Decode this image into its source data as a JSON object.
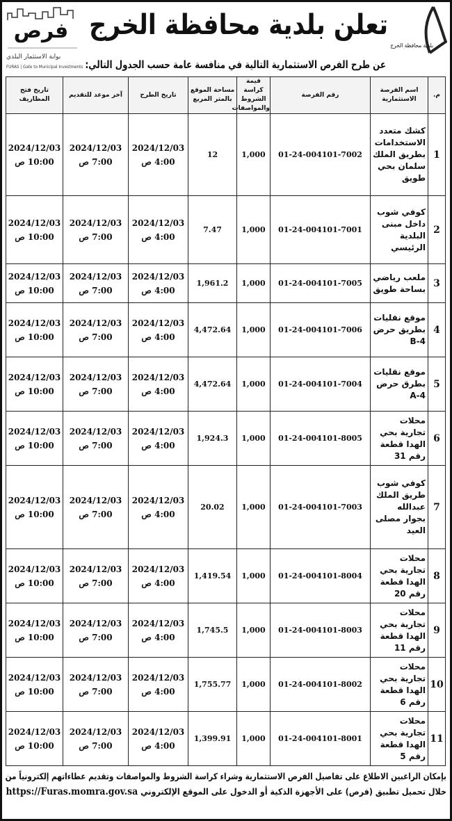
{
  "header": {
    "title": "تعلن بلدية محافظة الخرج",
    "subtitle": "عن طرح الفرص الاستثمارية التالية في منافسة عامة حسب الجدول التالي:",
    "municipality_logo_text": "بلدية محافظة الخرج",
    "furas_logo": "فرص",
    "furas_sub": "بوابة الاستثمار البلدي",
    "furas_en": "FURAS | Gate to Municipal Investments"
  },
  "table": {
    "headers": [
      "م.",
      "اسم الفرصة الاستثمارية",
      "رقم الفرصة",
      "قيمة كراسة الشروط والمواصفات",
      "مساحة الموقع بالمتر المربع",
      "تاريخ الطرح",
      "آخر موعد للتقديم",
      "تاريخ فتح المظاريف"
    ],
    "rows": [
      {
        "n": "1",
        "name": "كشك متعدد الاستخدامات بطريق الملك سلمان بحي طويق",
        "id": "01-24-004101-7002",
        "cost": "1,000",
        "area": "12",
        "post_date": "2024/12/03",
        "post_time": "4:00 ص",
        "deadline_date": "2024/12/03",
        "deadline_time": "7:00 ص",
        "open_date": "2024/12/03",
        "open_time": "10:00 ص"
      },
      {
        "n": "2",
        "name": "كوفي شوب داخل مبنى البلدية الرئيسي",
        "id": "01-24-004101-7001",
        "cost": "1,000",
        "area": "7.47",
        "post_date": "2024/12/03",
        "post_time": "4:00 ص",
        "deadline_date": "2024/12/03",
        "deadline_time": "7:00 ص",
        "open_date": "2024/12/03",
        "open_time": "10:00 ص"
      },
      {
        "n": "3",
        "name": "ملعب رياضي بساحة طويق",
        "id": "01-24-004101-7005",
        "cost": "1,000",
        "area": "1,961.2",
        "post_date": "2024/12/03",
        "post_time": "4:00 ص",
        "deadline_date": "2024/12/03",
        "deadline_time": "7:00 ص",
        "open_date": "2024/12/03",
        "open_time": "10:00 ص"
      },
      {
        "n": "4",
        "name": "موقع نقليات بطريق حرض B-4",
        "id": "01-24-004101-7006",
        "cost": "1,000",
        "area": "4,472.64",
        "post_date": "2024/12/03",
        "post_time": "4:00 ص",
        "deadline_date": "2024/12/03",
        "deadline_time": "7:00 ص",
        "open_date": "2024/12/03",
        "open_time": "10:00 ص"
      },
      {
        "n": "5",
        "name": "موقع نقليات بطرق حرض A-4",
        "id": "01-24-004101-7004",
        "cost": "1,000",
        "area": "4,472.64",
        "post_date": "2024/12/03",
        "post_time": "4:00 ص",
        "deadline_date": "2024/12/03",
        "deadline_time": "7:00 ص",
        "open_date": "2024/12/03",
        "open_time": "10:00 ص"
      },
      {
        "n": "6",
        "name": "محلات تجارية بحي الهدا قطعة رقم 31",
        "id": "01-24-004101-8005",
        "cost": "1,000",
        "area": "1,924.3",
        "post_date": "2024/12/03",
        "post_time": "4:00 ص",
        "deadline_date": "2024/12/03",
        "deadline_time": "7:00 ص",
        "open_date": "2024/12/03",
        "open_time": "10:00 ص"
      },
      {
        "n": "7",
        "name": "كوفي شوب طريق الملك عبدالله بجوار مصلى العيد",
        "id": "01-24-004101-7003",
        "cost": "1,000",
        "area": "20.02",
        "post_date": "2024/12/03",
        "post_time": "4:00 ص",
        "deadline_date": "2024/12/03",
        "deadline_time": "7:00 ص",
        "open_date": "2024/12/03",
        "open_time": "10:00 ص"
      },
      {
        "n": "8",
        "name": "محلات تجارية بحي الهدا قطعة رقم 20",
        "id": "01-24-004101-8004",
        "cost": "1,000",
        "area": "1,419.54",
        "post_date": "2024/12/03",
        "post_time": "4:00 ص",
        "deadline_date": "2024/12/03",
        "deadline_time": "7:00 ص",
        "open_date": "2024/12/03",
        "open_time": "10:00 ص"
      },
      {
        "n": "9",
        "name": "محلات تجارية بحي الهدا قطعة رقم 11",
        "id": "01-24-004101-8003",
        "cost": "1,000",
        "area": "1,745.5",
        "post_date": "2024/12/03",
        "post_time": "4:00 ص",
        "deadline_date": "2024/12/03",
        "deadline_time": "7:00 ص",
        "open_date": "2024/12/03",
        "open_time": "10:00 ص"
      },
      {
        "n": "10",
        "name": "محلات تجارية بحي الهدا قطعة رقم 6",
        "id": "01-24-004101-8002",
        "cost": "1,000",
        "area": "1,755.77",
        "post_date": "2024/12/03",
        "post_time": "4:00 ص",
        "deadline_date": "2024/12/03",
        "deadline_time": "7:00 ص",
        "open_date": "2024/12/03",
        "open_time": "10:00 ص"
      },
      {
        "n": "11",
        "name": "محلات تجارية بحي الهدا قطعة رقم 5",
        "id": "01-24-004101-8001",
        "cost": "1,000",
        "area": "1,399.91",
        "post_date": "2024/12/03",
        "post_time": "4:00 ص",
        "deadline_date": "2024/12/03",
        "deadline_time": "7:00 ص",
        "open_date": "2024/12/03",
        "open_time": "10:00 ص"
      }
    ]
  },
  "footer": {
    "line1": "بإمكان الراغبين الاطلاع على تفاصيل الفرص الاستثمارية وشراء كراسة الشروط والمواصفات وتقديم عطاءاتهم إلكترونياً من",
    "line2": "خلال تحميل تطبيق (فرص) على الأجهزة الذكية أو الدخول على الموقع الإلكتروني",
    "url": "https://Furas.momra.gov.sa"
  }
}
